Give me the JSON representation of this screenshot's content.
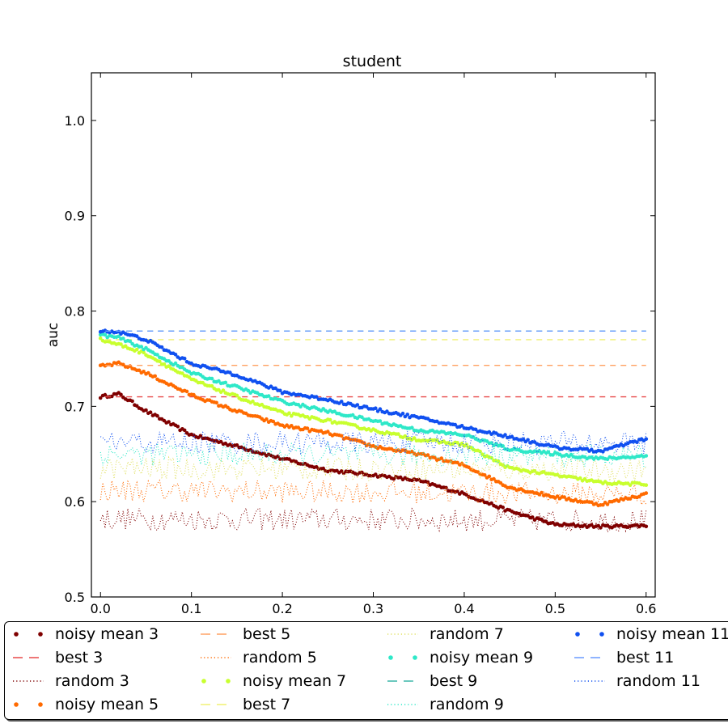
{
  "chart_data": {
    "type": "line",
    "title": "student",
    "xlabel": "",
    "ylabel": "auc",
    "xlim": [
      -0.01,
      0.61
    ],
    "ylim": [
      0.5,
      1.05
    ],
    "xticks": [
      "0.0",
      "0.1",
      "0.2",
      "0.3",
      "0.4",
      "0.5",
      "0.6"
    ],
    "yticks": [
      "0.5",
      "0.6",
      "0.7",
      "0.8",
      "0.9",
      "1.0"
    ],
    "grid": false,
    "legend_position": "bottom",
    "series": [
      {
        "name": "noisy mean 3",
        "style": "dots",
        "color": "#7f0000",
        "x": [
          0.0,
          0.02,
          0.05,
          0.1,
          0.15,
          0.2,
          0.25,
          0.3,
          0.35,
          0.4,
          0.45,
          0.5,
          0.55,
          0.6
        ],
        "values": [
          0.71,
          0.713,
          0.695,
          0.67,
          0.658,
          0.645,
          0.633,
          0.628,
          0.622,
          0.608,
          0.59,
          0.576,
          0.574,
          0.575
        ]
      },
      {
        "name": "best 3",
        "style": "dashed",
        "color": "#e84a4a",
        "x": [
          0.0,
          0.6
        ],
        "values": [
          0.71,
          0.71
        ]
      },
      {
        "name": "random 3",
        "style": "dotted",
        "color": "#7f0000",
        "noise": 0.012,
        "x": [
          0.0,
          0.6
        ],
        "values": [
          0.582,
          0.58
        ]
      },
      {
        "name": "noisy mean 5",
        "style": "dots",
        "color": "#ff6a00",
        "x": [
          0.0,
          0.02,
          0.05,
          0.1,
          0.15,
          0.2,
          0.25,
          0.3,
          0.35,
          0.4,
          0.45,
          0.5,
          0.55,
          0.6
        ],
        "values": [
          0.742,
          0.745,
          0.735,
          0.712,
          0.695,
          0.68,
          0.672,
          0.658,
          0.65,
          0.638,
          0.615,
          0.605,
          0.597,
          0.608
        ]
      },
      {
        "name": "best 5",
        "style": "dashed",
        "color": "#ffa060",
        "x": [
          0.0,
          0.6
        ],
        "values": [
          0.743,
          0.743
        ]
      },
      {
        "name": "random 5",
        "style": "dotted",
        "color": "#ff6a00",
        "noise": 0.012,
        "x": [
          0.0,
          0.6
        ],
        "values": [
          0.612,
          0.608
        ]
      },
      {
        "name": "noisy mean 7",
        "style": "dots",
        "color": "#c8ff2e",
        "x": [
          0.0,
          0.02,
          0.05,
          0.1,
          0.15,
          0.2,
          0.25,
          0.3,
          0.35,
          0.4,
          0.45,
          0.5,
          0.55,
          0.6
        ],
        "values": [
          0.77,
          0.765,
          0.755,
          0.728,
          0.71,
          0.693,
          0.685,
          0.675,
          0.665,
          0.66,
          0.635,
          0.628,
          0.62,
          0.618
        ]
      },
      {
        "name": "best 7",
        "style": "dashed",
        "color": "#f0f070",
        "x": [
          0.0,
          0.6
        ],
        "values": [
          0.77,
          0.77
        ]
      },
      {
        "name": "random 7",
        "style": "dotted",
        "color": "#e0e060",
        "noise": 0.012,
        "x": [
          0.0,
          0.6
        ],
        "values": [
          0.635,
          0.633
        ]
      },
      {
        "name": "noisy mean 9",
        "style": "dots",
        "color": "#2ee8c8",
        "x": [
          0.0,
          0.02,
          0.05,
          0.1,
          0.15,
          0.2,
          0.25,
          0.3,
          0.35,
          0.4,
          0.45,
          0.5,
          0.55,
          0.6
        ],
        "values": [
          0.775,
          0.772,
          0.76,
          0.735,
          0.72,
          0.705,
          0.695,
          0.685,
          0.675,
          0.67,
          0.655,
          0.65,
          0.645,
          0.648
        ]
      },
      {
        "name": "best 9",
        "style": "dashed",
        "color": "#3ab5a8",
        "x": [
          0.0,
          0.6
        ],
        "values": [
          0.779,
          0.779
        ]
      },
      {
        "name": "random 9",
        "style": "dotted",
        "color": "#2ee8c8",
        "noise": 0.012,
        "x": [
          0.0,
          0.6
        ],
        "values": [
          0.65,
          0.648
        ]
      },
      {
        "name": "noisy mean 11",
        "style": "dots",
        "color": "#1050f0",
        "x": [
          0.0,
          0.02,
          0.05,
          0.1,
          0.15,
          0.2,
          0.25,
          0.3,
          0.35,
          0.4,
          0.45,
          0.5,
          0.55,
          0.6
        ],
        "values": [
          0.779,
          0.778,
          0.77,
          0.745,
          0.733,
          0.715,
          0.707,
          0.697,
          0.688,
          0.678,
          0.668,
          0.657,
          0.653,
          0.666
        ]
      },
      {
        "name": "best 11",
        "style": "dashed",
        "color": "#6a9cff",
        "x": [
          0.0,
          0.6
        ],
        "values": [
          0.779,
          0.779
        ]
      },
      {
        "name": "random 11",
        "style": "dotted",
        "color": "#1050f0",
        "noise": 0.012,
        "x": [
          0.0,
          0.6
        ],
        "values": [
          0.662,
          0.662
        ]
      }
    ]
  }
}
